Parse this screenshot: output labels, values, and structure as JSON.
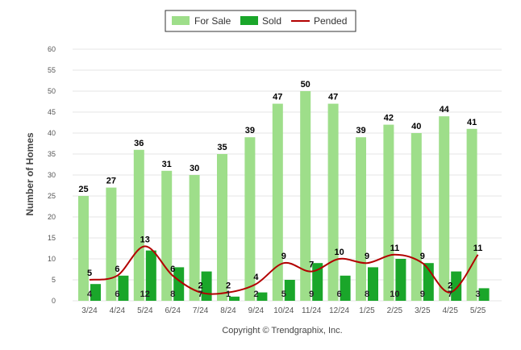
{
  "copyright": "Copyright © Trendgraphix, Inc.",
  "chart_data": {
    "type": "bar",
    "ylabel": "Number of Homes",
    "xlabel": "",
    "ylim": [
      0,
      60
    ],
    "yticks": [
      0,
      5,
      10,
      15,
      20,
      25,
      30,
      35,
      40,
      45,
      50,
      55,
      60
    ],
    "grid": true,
    "legend_position": "top-center",
    "categories": [
      "3/24",
      "4/24",
      "5/24",
      "6/24",
      "7/24",
      "8/24",
      "9/24",
      "10/24",
      "11/24",
      "12/24",
      "1/25",
      "2/25",
      "3/25",
      "4/25",
      "5/25"
    ],
    "series": [
      {
        "name": "For Sale",
        "type": "bar",
        "color": "#9ede8a",
        "values": [
          25,
          27,
          36,
          31,
          30,
          35,
          39,
          47,
          50,
          47,
          39,
          42,
          40,
          44,
          41
        ]
      },
      {
        "name": "Sold",
        "type": "bar",
        "color": "#1aa62a",
        "values": [
          4,
          6,
          12,
          8,
          7,
          1,
          2,
          5,
          9,
          6,
          8,
          10,
          9,
          7,
          3
        ]
      },
      {
        "name": "Pended",
        "type": "line",
        "color": "#b30000",
        "values": [
          5,
          6,
          13,
          6,
          2,
          2,
          4,
          9,
          7,
          10,
          9,
          11,
          9,
          2,
          11
        ]
      }
    ]
  }
}
